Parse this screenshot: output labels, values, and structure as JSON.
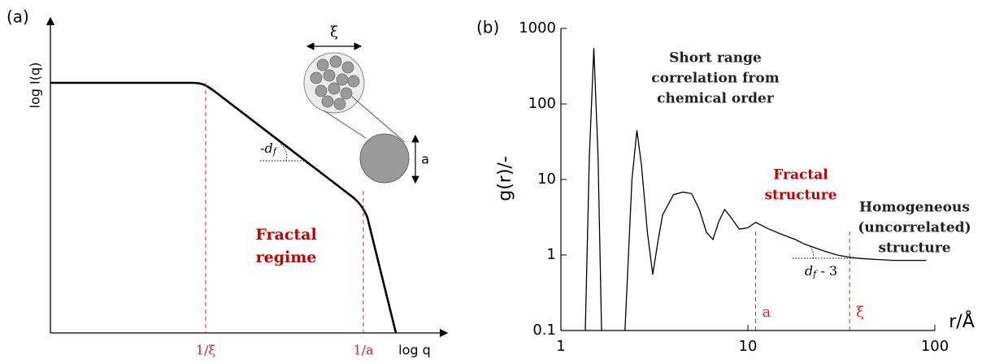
{
  "chart_data": [
    {
      "type": "schematic",
      "panel_label": "(a)",
      "x_label": "log q",
      "y_label": "log I(q)",
      "x_markers": [
        "1/ξ",
        "1/a"
      ],
      "marker_color": "#d62728",
      "region_label": [
        "Fractal",
        "regime"
      ],
      "region_color": "#c00000",
      "slope_label": {
        "base": "-d",
        "sub": "f"
      },
      "inset_labels": [
        "ξ",
        "a"
      ]
    },
    {
      "type": "line",
      "panel_label": "(b)",
      "x_label": "r/Å",
      "y_label": "g(r)/-",
      "xscale": "log",
      "yscale": "log",
      "xlim": [
        1,
        100
      ],
      "ylim": [
        0.1,
        1000
      ],
      "xticks": [
        1,
        10,
        100
      ],
      "yticks": [
        0.1,
        1,
        10,
        100,
        1000
      ],
      "series": [
        {
          "color": "#000000",
          "x": [
            1.35,
            1.42,
            1.5,
            1.58,
            1.65,
            1.9,
            2.2,
            2.4,
            2.55,
            2.7,
            2.9,
            3.1,
            3.3,
            3.5,
            4,
            4.5,
            5,
            5.5,
            6,
            6.5,
            7,
            7.5,
            8,
            9,
            10,
            11,
            13,
            15,
            18,
            20,
            25,
            30,
            35,
            40,
            50,
            60,
            75,
            90
          ],
          "values": [
            0.1,
            20,
            550,
            20,
            0.1,
            null,
            0.1,
            10,
            45,
            15,
            2,
            0.55,
            1.5,
            3.4,
            6.3,
            6.8,
            6.5,
            4,
            2,
            1.6,
            2.8,
            4,
            3.3,
            2.2,
            2.3,
            2.7,
            2.2,
            1.9,
            1.6,
            1.4,
            1.15,
            1.0,
            0.93,
            0.9,
            0.87,
            0.85,
            0.85,
            0.85
          ]
        }
      ],
      "markers": [
        {
          "value": 11,
          "label": "a"
        },
        {
          "value": 35,
          "label": "ξ"
        }
      ],
      "marker_color": "#d62728",
      "annotations": [
        {
          "lines": [
            "Short range",
            "correlation from",
            "chemical order"
          ],
          "color": "#222222"
        },
        {
          "lines": [
            "Fractal",
            "structure"
          ],
          "color": "#c00000"
        },
        {
          "lines": [
            "Homogeneous",
            "(uncorrelated)",
            "structure"
          ],
          "color": "#222222"
        }
      ],
      "slope_label": {
        "base": "d",
        "sub": "f",
        "rest": " - 3"
      }
    }
  ]
}
